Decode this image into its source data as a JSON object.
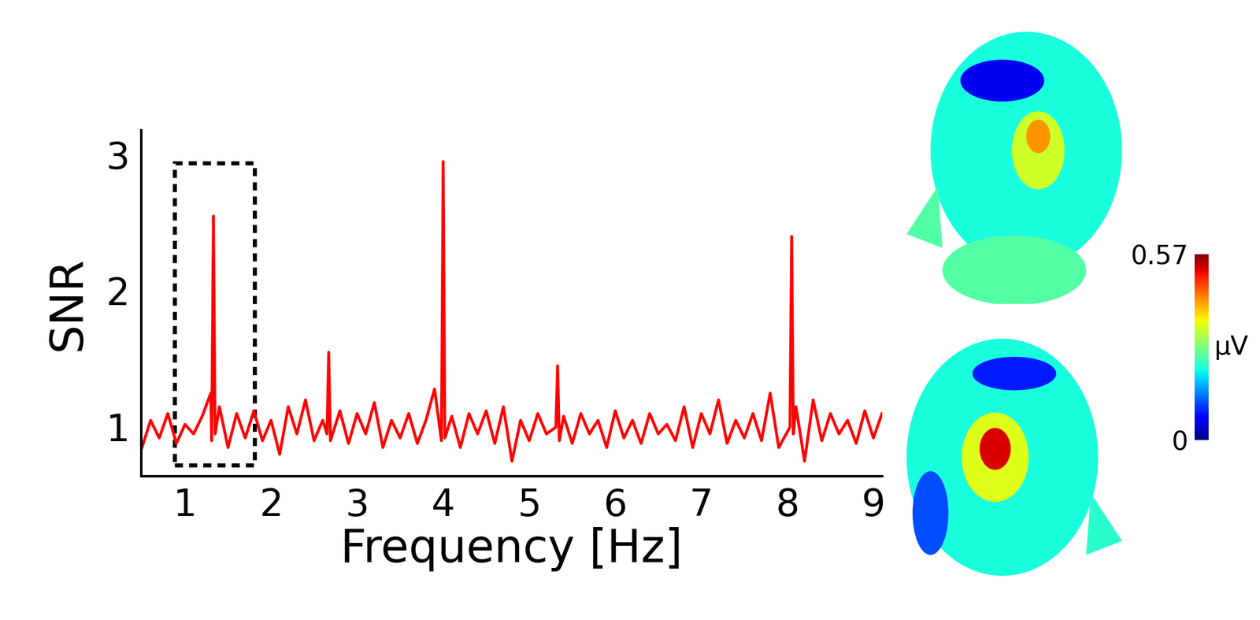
{
  "chart_data": {
    "type": "line",
    "x_label": "Frequency [Hz]",
    "y_label": "SNR",
    "x": [
      0.5,
      0.6,
      0.7,
      0.8,
      0.9,
      1.0,
      1.1,
      1.2,
      1.3,
      1.31,
      1.33,
      1.35,
      1.4,
      1.5,
      1.6,
      1.7,
      1.8,
      1.9,
      2.0,
      2.1,
      2.2,
      2.3,
      2.4,
      2.5,
      2.6,
      2.65,
      2.67,
      2.69,
      2.8,
      2.9,
      3.0,
      3.1,
      3.2,
      3.3,
      3.4,
      3.5,
      3.6,
      3.7,
      3.8,
      3.9,
      3.98,
      4.0,
      4.02,
      4.1,
      4.2,
      4.3,
      4.4,
      4.5,
      4.6,
      4.7,
      4.8,
      4.9,
      5.0,
      5.1,
      5.2,
      5.31,
      5.33,
      5.35,
      5.4,
      5.5,
      5.6,
      5.7,
      5.8,
      5.9,
      6.0,
      6.1,
      6.2,
      6.3,
      6.4,
      6.5,
      6.6,
      6.7,
      6.8,
      6.9,
      7.0,
      7.1,
      7.2,
      7.3,
      7.4,
      7.5,
      7.6,
      7.7,
      7.8,
      7.9,
      8.03,
      8.05,
      8.07,
      8.1,
      8.2,
      8.3,
      8.4,
      8.5,
      8.6,
      8.7,
      8.8,
      8.9,
      9.0,
      9.1
    ],
    "values": [
      0.85,
      1.05,
      0.92,
      1.1,
      0.88,
      1.02,
      0.95,
      1.08,
      1.25,
      0.9,
      2.55,
      0.95,
      1.15,
      0.85,
      1.1,
      0.92,
      1.12,
      0.9,
      1.05,
      0.8,
      1.15,
      0.95,
      1.2,
      0.9,
      1.05,
      0.95,
      1.55,
      0.9,
      1.12,
      0.88,
      1.1,
      0.95,
      1.18,
      0.85,
      1.05,
      0.92,
      1.1,
      0.88,
      1.05,
      1.28,
      0.9,
      2.95,
      0.92,
      1.08,
      0.85,
      1.1,
      0.95,
      1.12,
      0.88,
      1.15,
      0.75,
      1.05,
      0.9,
      1.1,
      0.95,
      1.0,
      1.45,
      0.9,
      1.08,
      0.88,
      1.1,
      0.95,
      1.05,
      0.85,
      1.12,
      0.92,
      1.05,
      0.88,
      1.1,
      0.95,
      1.02,
      0.9,
      1.15,
      0.85,
      1.1,
      0.95,
      1.2,
      0.88,
      1.05,
      0.92,
      1.1,
      0.9,
      1.25,
      0.85,
      1.0,
      2.4,
      0.95,
      1.15,
      0.75,
      1.2,
      0.9,
      1.1,
      0.95,
      1.05,
      0.88,
      1.12,
      0.92,
      1.1
    ],
    "color": "#ff0000",
    "xlim": [
      0.49,
      9.1
    ],
    "xticks": [
      1,
      2,
      3,
      4,
      5,
      6,
      7,
      8,
      9
    ],
    "ylim": [
      0.64,
      3.18
    ],
    "yticks": [
      1,
      2,
      3
    ],
    "highlight": {
      "x": [
        0.88,
        1.81
      ],
      "y": [
        0.72,
        2.94
      ]
    },
    "colorbar": {
      "range": [
        0,
        0.57
      ],
      "ticks": [
        0,
        0.57
      ],
      "label": "µV"
    },
    "grid": false
  }
}
